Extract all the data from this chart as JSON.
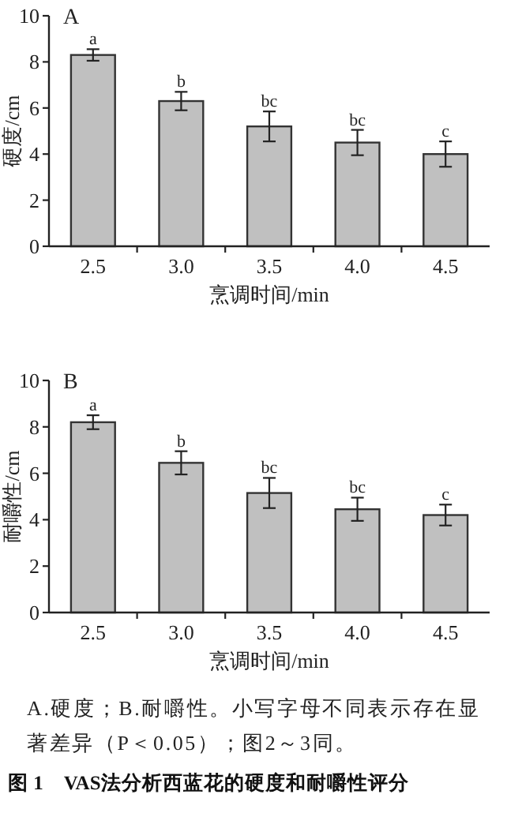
{
  "chart_data": [
    {
      "type": "bar",
      "title": "A",
      "categories": [
        "2.5",
        "3.0",
        "3.5",
        "4.0",
        "4.5"
      ],
      "values": [
        8.3,
        6.3,
        5.2,
        4.5,
        4.0
      ],
      "errors": [
        0.25,
        0.4,
        0.65,
        0.55,
        0.55
      ],
      "color": "#c0c0c0",
      "ylim": [
        0,
        10
      ],
      "yticks": [
        0,
        2,
        4,
        6,
        8,
        10
      ],
      "xlabel": "烹调时间/min",
      "ylabel": "硬度/cm",
      "annotations": [
        {
          "text": "a",
          "x": "2.5",
          "y": 8.55
        },
        {
          "text": "b",
          "x": "3.0",
          "y": 6.7
        },
        {
          "text": "bc",
          "x": "3.5",
          "y": 5.85
        },
        {
          "text": "bc",
          "x": "4.0",
          "y": 5.05
        },
        {
          "text": "c",
          "x": "4.5",
          "y": 4.55
        }
      ]
    },
    {
      "type": "bar",
      "title": "B",
      "categories": [
        "2.5",
        "3.0",
        "3.5",
        "4.0",
        "4.5"
      ],
      "values": [
        8.2,
        6.45,
        5.15,
        4.45,
        4.2
      ],
      "errors": [
        0.3,
        0.5,
        0.65,
        0.5,
        0.45
      ],
      "color": "#c0c0c0",
      "ylim": [
        0,
        10
      ],
      "yticks": [
        0,
        2,
        4,
        6,
        8,
        10
      ],
      "xlabel": "烹调时间/min",
      "ylabel": "耐嚼性/cm",
      "annotations": [
        {
          "text": "a",
          "x": "2.5",
          "y": 8.5
        },
        {
          "text": "b",
          "x": "3.0",
          "y": 6.95
        },
        {
          "text": "bc",
          "x": "3.5",
          "y": 5.8
        },
        {
          "text": "bc",
          "x": "4.0",
          "y": 4.95
        },
        {
          "text": "c",
          "x": "4.5",
          "y": 4.65
        },
        "A.硬度；B.耐嚼性。小写字母不同表示存在显著差异（P＜0.05）；图2～3同。",
        "图 1　VAS法分析西蓝花的硬度和耐嚼性评分"
      ]
    }
  ]
}
